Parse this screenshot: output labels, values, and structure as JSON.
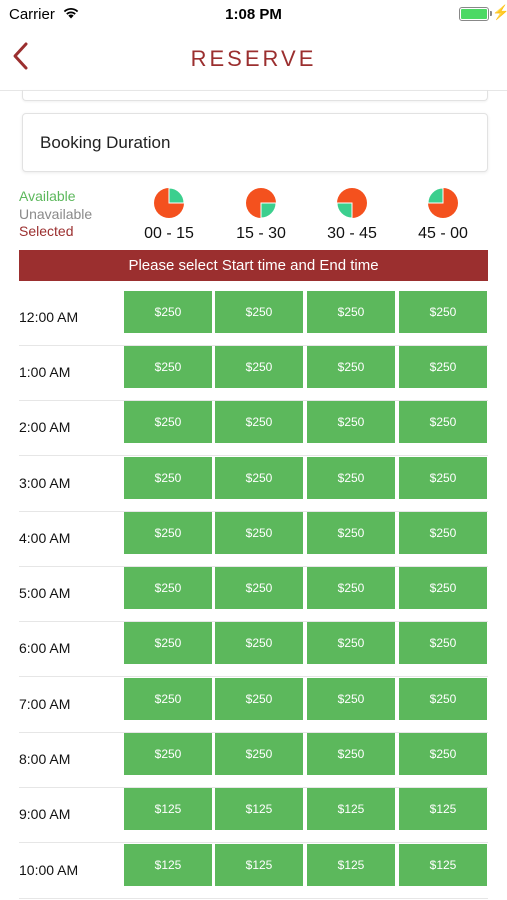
{
  "status_bar": {
    "carrier": "Carrier",
    "time": "1:08 PM"
  },
  "nav": {
    "title": "RESERVE"
  },
  "booking": {
    "label": "Booking Duration"
  },
  "legend": {
    "available": "Available",
    "unavailable": "Unavailable",
    "selected": "Selected"
  },
  "quarters": [
    {
      "label": "00 - 15",
      "highlight": 1
    },
    {
      "label": "15 - 30",
      "highlight": 2
    },
    {
      "label": "30 - 45",
      "highlight": 3
    },
    {
      "label": "45 - 00",
      "highlight": 4
    }
  ],
  "banner": "Please select Start time and End time",
  "rows": [
    {
      "time": "12:00 AM",
      "slots": [
        "$250",
        "$250",
        "$250",
        "$250"
      ]
    },
    {
      "time": "1:00 AM",
      "slots": [
        "$250",
        "$250",
        "$250",
        "$250"
      ]
    },
    {
      "time": "2:00 AM",
      "slots": [
        "$250",
        "$250",
        "$250",
        "$250"
      ]
    },
    {
      "time": "3:00 AM",
      "slots": [
        "$250",
        "$250",
        "$250",
        "$250"
      ]
    },
    {
      "time": "4:00 AM",
      "slots": [
        "$250",
        "$250",
        "$250",
        "$250"
      ]
    },
    {
      "time": "5:00 AM",
      "slots": [
        "$250",
        "$250",
        "$250",
        "$250"
      ]
    },
    {
      "time": "6:00 AM",
      "slots": [
        "$250",
        "$250",
        "$250",
        "$250"
      ]
    },
    {
      "time": "7:00 AM",
      "slots": [
        "$250",
        "$250",
        "$250",
        "$250"
      ]
    },
    {
      "time": "8:00 AM",
      "slots": [
        "$250",
        "$250",
        "$250",
        "$250"
      ]
    },
    {
      "time": "9:00 AM",
      "slots": [
        "$125",
        "$125",
        "$125",
        "$125"
      ]
    },
    {
      "time": "10:00 AM",
      "slots": [
        "$125",
        "$125",
        "$125",
        "$125"
      ]
    }
  ],
  "colors": {
    "accent": "#9b2f2f",
    "available": "#5cb85c",
    "pie_orange": "#f4511e",
    "pie_green": "#3ccf8e"
  },
  "icons": {
    "back": "chevron-left-icon",
    "wifi": "wifi-icon",
    "battery": "battery-icon",
    "charging": "charging-bolt-icon"
  }
}
